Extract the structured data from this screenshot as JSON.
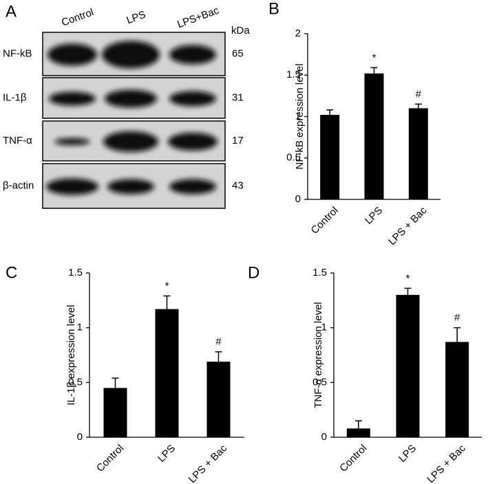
{
  "blot": {
    "panel": "A",
    "lanes": [
      "Control",
      "LPS",
      "LPS+Bac"
    ],
    "unit": "kDa",
    "rows": [
      {
        "label": "NF-kB",
        "kda": 65
      },
      {
        "label": "IL-1β",
        "kda": 31
      },
      {
        "label": "TNF-α",
        "kda": 17
      },
      {
        "label": "β-actin",
        "kda": 43
      }
    ]
  },
  "chart_data": [
    {
      "type": "bar",
      "panel": "B",
      "y_label": "NF-kB expression level",
      "categories": [
        "Control",
        "LPS",
        "LPS + Bac"
      ],
      "values": [
        1.02,
        1.52,
        1.1
      ],
      "errors": [
        0.06,
        0.07,
        0.05
      ],
      "value_annotations": [
        null,
        "*",
        "#"
      ],
      "color": "#000000",
      "ylim": [
        0,
        2
      ],
      "yticks": [
        0,
        0.5,
        1,
        1.5,
        2
      ]
    },
    {
      "type": "bar",
      "panel": "C",
      "y_label": "IL-1β expression level",
      "categories": [
        "Control",
        "LPS",
        "LPS + Bac"
      ],
      "values": [
        0.45,
        1.17,
        0.69
      ],
      "errors": [
        0.09,
        0.12,
        0.09
      ],
      "value_annotations": [
        null,
        "*",
        "#"
      ],
      "color": "#000000",
      "ylim": [
        0,
        1.5
      ],
      "yticks": [
        0,
        0.5,
        1,
        1.5
      ]
    },
    {
      "type": "bar",
      "panel": "D",
      "y_label": "TNF-α expression level",
      "categories": [
        "Control",
        "LPS",
        "LPS + Bac"
      ],
      "values": [
        0.08,
        1.3,
        0.87
      ],
      "errors": [
        0.07,
        0.06,
        0.13
      ],
      "value_annotations": [
        null,
        "*",
        "#"
      ],
      "color": "#000000",
      "ylim": [
        0,
        1.5
      ],
      "yticks": [
        0,
        0.5,
        1,
        1.5
      ]
    }
  ]
}
